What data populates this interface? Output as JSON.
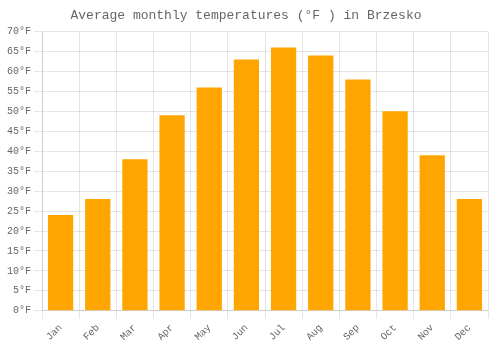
{
  "chart_data": {
    "type": "bar",
    "title": "Average monthly temperatures (°F ) in Brzesko",
    "categories": [
      "Jan",
      "Feb",
      "Mar",
      "Apr",
      "May",
      "Jun",
      "Jul",
      "Aug",
      "Sep",
      "Oct",
      "Nov",
      "Dec"
    ],
    "values": [
      24,
      28,
      38,
      49,
      56,
      63,
      66,
      64,
      58,
      50,
      39,
      28
    ],
    "color": "#FFA500",
    "ylim": [
      0,
      70
    ],
    "yticks": [
      {
        "value": 0,
        "label": "0°F"
      },
      {
        "value": 5,
        "label": "5°F"
      },
      {
        "value": 10,
        "label": "10°F"
      },
      {
        "value": 15,
        "label": "15°F"
      },
      {
        "value": 20,
        "label": "20°F"
      },
      {
        "value": 25,
        "label": "25°F"
      },
      {
        "value": 30,
        "label": "30°F"
      },
      {
        "value": 35,
        "label": "35°F"
      },
      {
        "value": 40,
        "label": "40°F"
      },
      {
        "value": 45,
        "label": "45°F"
      },
      {
        "value": 50,
        "label": "50°F"
      },
      {
        "value": 55,
        "label": "55°F"
      },
      {
        "value": 60,
        "label": "60°F"
      },
      {
        "value": 65,
        "label": "65°F"
      },
      {
        "value": 70,
        "label": "70°F"
      }
    ],
    "grid": true
  }
}
